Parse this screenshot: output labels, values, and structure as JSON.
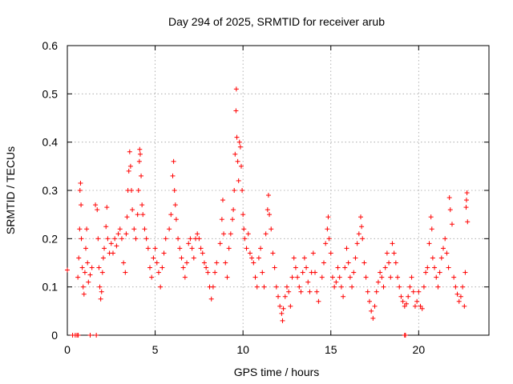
{
  "chart_data": {
    "type": "scatter",
    "title": "Day 294 of 2025, SRMTID for receiver arub",
    "xlabel": "GPS time / hours",
    "ylabel": "SRMTID / TECUs",
    "xlim": [
      0,
      24
    ],
    "ylim": [
      0,
      0.6
    ],
    "grid": true,
    "marker": "+",
    "marker_color": "#ff0000",
    "x_ticks": [
      0,
      5,
      10,
      15,
      20
    ],
    "x_tick_labels": [
      "0",
      "5",
      "10",
      "15",
      "20"
    ],
    "y_ticks": [
      0,
      0.1,
      0.2,
      0.3,
      0.4,
      0.5,
      0.6
    ],
    "y_tick_labels": [
      "0",
      "0.1",
      "0.2",
      "0.3",
      "0.4",
      "0.5",
      "0.6"
    ],
    "series": [
      {
        "name": "SRMTID",
        "points": [
          [
            0.0,
            0.135
          ],
          [
            0.3,
            0.0
          ],
          [
            0.45,
            0.0
          ],
          [
            0.55,
            0.0
          ],
          [
            0.62,
            0.0
          ],
          [
            1.3,
            0.0
          ],
          [
            1.65,
            0.0
          ],
          [
            19.2,
            0.0
          ],
          [
            19.25,
            0.0
          ],
          [
            0.6,
            0.12
          ],
          [
            0.65,
            0.16
          ],
          [
            0.7,
            0.22
          ],
          [
            0.72,
            0.3
          ],
          [
            0.75,
            0.315
          ],
          [
            0.78,
            0.27
          ],
          [
            0.8,
            0.2
          ],
          [
            0.85,
            0.14
          ],
          [
            0.9,
            0.1
          ],
          [
            0.95,
            0.085
          ],
          [
            1.0,
            0.13
          ],
          [
            1.05,
            0.18
          ],
          [
            1.1,
            0.22
          ],
          [
            1.15,
            0.15
          ],
          [
            1.2,
            0.11
          ],
          [
            1.3,
            0.125
          ],
          [
            1.4,
            0.14
          ],
          [
            1.6,
            0.27
          ],
          [
            1.7,
            0.26
          ],
          [
            1.75,
            0.2
          ],
          [
            1.8,
            0.14
          ],
          [
            1.85,
            0.1
          ],
          [
            1.9,
            0.075
          ],
          [
            1.95,
            0.09
          ],
          [
            2.0,
            0.13
          ],
          [
            2.05,
            0.16
          ],
          [
            2.1,
            0.18
          ],
          [
            2.2,
            0.225
          ],
          [
            2.25,
            0.265
          ],
          [
            2.3,
            0.2
          ],
          [
            2.4,
            0.17
          ],
          [
            2.5,
            0.19
          ],
          [
            2.6,
            0.17
          ],
          [
            2.7,
            0.2
          ],
          [
            2.8,
            0.185
          ],
          [
            2.9,
            0.21
          ],
          [
            3.0,
            0.22
          ],
          [
            3.1,
            0.2
          ],
          [
            3.2,
            0.15
          ],
          [
            3.3,
            0.13
          ],
          [
            3.35,
            0.21
          ],
          [
            3.4,
            0.245
          ],
          [
            3.45,
            0.3
          ],
          [
            3.5,
            0.34
          ],
          [
            3.55,
            0.38
          ],
          [
            3.6,
            0.35
          ],
          [
            3.65,
            0.3
          ],
          [
            3.7,
            0.26
          ],
          [
            3.8,
            0.22
          ],
          [
            3.9,
            0.2
          ],
          [
            4.0,
            0.25
          ],
          [
            4.05,
            0.3
          ],
          [
            4.1,
            0.36
          ],
          [
            4.12,
            0.385
          ],
          [
            4.15,
            0.375
          ],
          [
            4.2,
            0.33
          ],
          [
            4.25,
            0.27
          ],
          [
            4.3,
            0.25
          ],
          [
            4.4,
            0.22
          ],
          [
            4.5,
            0.2
          ],
          [
            4.6,
            0.18
          ],
          [
            4.7,
            0.14
          ],
          [
            4.8,
            0.12
          ],
          [
            4.9,
            0.16
          ],
          [
            5.0,
            0.18
          ],
          [
            5.1,
            0.15
          ],
          [
            5.2,
            0.13
          ],
          [
            5.3,
            0.1
          ],
          [
            5.4,
            0.14
          ],
          [
            5.5,
            0.17
          ],
          [
            5.6,
            0.2
          ],
          [
            5.8,
            0.22
          ],
          [
            5.9,
            0.25
          ],
          [
            6.0,
            0.33
          ],
          [
            6.05,
            0.36
          ],
          [
            6.1,
            0.3
          ],
          [
            6.15,
            0.27
          ],
          [
            6.2,
            0.24
          ],
          [
            6.3,
            0.2
          ],
          [
            6.4,
            0.18
          ],
          [
            6.5,
            0.16
          ],
          [
            6.6,
            0.14
          ],
          [
            6.7,
            0.12
          ],
          [
            6.8,
            0.15
          ],
          [
            6.9,
            0.19
          ],
          [
            7.0,
            0.2
          ],
          [
            7.1,
            0.18
          ],
          [
            7.2,
            0.16
          ],
          [
            7.3,
            0.2
          ],
          [
            7.4,
            0.21
          ],
          [
            7.5,
            0.2
          ],
          [
            7.6,
            0.18
          ],
          [
            7.7,
            0.17
          ],
          [
            7.8,
            0.15
          ],
          [
            7.9,
            0.14
          ],
          [
            8.0,
            0.13
          ],
          [
            8.1,
            0.1
          ],
          [
            8.2,
            0.075
          ],
          [
            8.3,
            0.1
          ],
          [
            8.4,
            0.13
          ],
          [
            8.5,
            0.15
          ],
          [
            8.7,
            0.19
          ],
          [
            8.8,
            0.24
          ],
          [
            8.85,
            0.28
          ],
          [
            8.9,
            0.21
          ],
          [
            9.0,
            0.15
          ],
          [
            9.1,
            0.12
          ],
          [
            9.2,
            0.18
          ],
          [
            9.3,
            0.21
          ],
          [
            9.4,
            0.24
          ],
          [
            9.45,
            0.26
          ],
          [
            9.5,
            0.3
          ],
          [
            9.55,
            0.375
          ],
          [
            9.6,
            0.465
          ],
          [
            9.62,
            0.51
          ],
          [
            9.65,
            0.41
          ],
          [
            9.7,
            0.36
          ],
          [
            9.75,
            0.32
          ],
          [
            9.8,
            0.4
          ],
          [
            9.85,
            0.39
          ],
          [
            9.9,
            0.35
          ],
          [
            9.95,
            0.3
          ],
          [
            10.0,
            0.25
          ],
          [
            10.05,
            0.22
          ],
          [
            10.1,
            0.2
          ],
          [
            10.2,
            0.18
          ],
          [
            10.3,
            0.21
          ],
          [
            10.4,
            0.17
          ],
          [
            10.5,
            0.16
          ],
          [
            10.6,
            0.15
          ],
          [
            10.7,
            0.12
          ],
          [
            10.8,
            0.1
          ],
          [
            10.9,
            0.16
          ],
          [
            11.0,
            0.18
          ],
          [
            11.1,
            0.13
          ],
          [
            11.2,
            0.1
          ],
          [
            11.3,
            0.21
          ],
          [
            11.4,
            0.26
          ],
          [
            11.45,
            0.29
          ],
          [
            11.5,
            0.25
          ],
          [
            11.6,
            0.22
          ],
          [
            11.7,
            0.17
          ],
          [
            11.8,
            0.14
          ],
          [
            11.9,
            0.1
          ],
          [
            12.0,
            0.08
          ],
          [
            12.1,
            0.06
          ],
          [
            12.2,
            0.045
          ],
          [
            12.25,
            0.03
          ],
          [
            12.3,
            0.055
          ],
          [
            12.4,
            0.08
          ],
          [
            12.5,
            0.1
          ],
          [
            12.6,
            0.09
          ],
          [
            12.7,
            0.06
          ],
          [
            12.8,
            0.12
          ],
          [
            12.9,
            0.16
          ],
          [
            13.0,
            0.14
          ],
          [
            13.1,
            0.12
          ],
          [
            13.2,
            0.1
          ],
          [
            13.3,
            0.09
          ],
          [
            13.4,
            0.13
          ],
          [
            13.5,
            0.16
          ],
          [
            13.6,
            0.14
          ],
          [
            13.7,
            0.11
          ],
          [
            13.8,
            0.09
          ],
          [
            13.9,
            0.13
          ],
          [
            14.0,
            0.17
          ],
          [
            14.1,
            0.13
          ],
          [
            14.2,
            0.09
          ],
          [
            14.3,
            0.07
          ],
          [
            14.5,
            0.12
          ],
          [
            14.6,
            0.15
          ],
          [
            14.7,
            0.19
          ],
          [
            14.8,
            0.22
          ],
          [
            14.85,
            0.245
          ],
          [
            14.9,
            0.2
          ],
          [
            15.0,
            0.17
          ],
          [
            15.1,
            0.12
          ],
          [
            15.2,
            0.1
          ],
          [
            15.3,
            0.11
          ],
          [
            15.4,
            0.14
          ],
          [
            15.5,
            0.12
          ],
          [
            15.6,
            0.1
          ],
          [
            15.7,
            0.08
          ],
          [
            15.8,
            0.14
          ],
          [
            15.9,
            0.18
          ],
          [
            16.0,
            0.15
          ],
          [
            16.1,
            0.12
          ],
          [
            16.2,
            0.1
          ],
          [
            16.3,
            0.13
          ],
          [
            16.4,
            0.16
          ],
          [
            16.5,
            0.19
          ],
          [
            16.6,
            0.21
          ],
          [
            16.7,
            0.245
          ],
          [
            16.75,
            0.225
          ],
          [
            16.8,
            0.2
          ],
          [
            16.9,
            0.15
          ],
          [
            17.0,
            0.12
          ],
          [
            17.1,
            0.09
          ],
          [
            17.2,
            0.07
          ],
          [
            17.3,
            0.05
          ],
          [
            17.4,
            0.035
          ],
          [
            17.5,
            0.06
          ],
          [
            17.6,
            0.09
          ],
          [
            17.7,
            0.11
          ],
          [
            17.8,
            0.13
          ],
          [
            17.9,
            0.12
          ],
          [
            18.0,
            0.1
          ],
          [
            18.1,
            0.14
          ],
          [
            18.2,
            0.17
          ],
          [
            18.3,
            0.15
          ],
          [
            18.4,
            0.12
          ],
          [
            18.5,
            0.19
          ],
          [
            18.6,
            0.17
          ],
          [
            18.7,
            0.15
          ],
          [
            18.8,
            0.12
          ],
          [
            18.9,
            0.1
          ],
          [
            19.0,
            0.08
          ],
          [
            19.1,
            0.07
          ],
          [
            19.2,
            0.06
          ],
          [
            19.3,
            0.065
          ],
          [
            19.4,
            0.08
          ],
          [
            19.5,
            0.1
          ],
          [
            19.6,
            0.12
          ],
          [
            19.7,
            0.09
          ],
          [
            19.8,
            0.06
          ],
          [
            19.9,
            0.07
          ],
          [
            20.0,
            0.09
          ],
          [
            20.1,
            0.06
          ],
          [
            20.2,
            0.055
          ],
          [
            20.3,
            0.1
          ],
          [
            20.4,
            0.13
          ],
          [
            20.5,
            0.14
          ],
          [
            20.6,
            0.19
          ],
          [
            20.7,
            0.245
          ],
          [
            20.75,
            0.22
          ],
          [
            20.8,
            0.16
          ],
          [
            20.9,
            0.14
          ],
          [
            21.0,
            0.12
          ],
          [
            21.1,
            0.1
          ],
          [
            21.2,
            0.13
          ],
          [
            21.3,
            0.16
          ],
          [
            21.4,
            0.18
          ],
          [
            21.5,
            0.2
          ],
          [
            21.6,
            0.17
          ],
          [
            21.7,
            0.14
          ],
          [
            21.75,
            0.285
          ],
          [
            21.8,
            0.26
          ],
          [
            21.9,
            0.23
          ],
          [
            22.0,
            0.12
          ],
          [
            22.1,
            0.1
          ],
          [
            22.2,
            0.085
          ],
          [
            22.3,
            0.07
          ],
          [
            22.4,
            0.08
          ],
          [
            22.5,
            0.1
          ],
          [
            22.6,
            0.06
          ],
          [
            22.65,
            0.13
          ],
          [
            22.7,
            0.265
          ],
          [
            22.72,
            0.28
          ],
          [
            22.75,
            0.295
          ],
          [
            22.78,
            0.235
          ]
        ]
      }
    ]
  }
}
